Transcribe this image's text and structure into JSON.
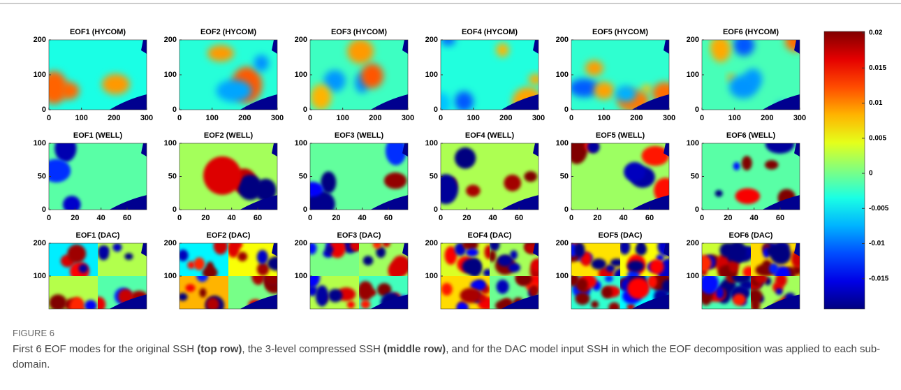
{
  "figure": {
    "rows": [
      {
        "titles": [
          "EOF1 (HYCOM)",
          "EOF2 (HYCOM)",
          "EOF3 (HYCOM)",
          "EOF4 (HYCOM)",
          "EOF5 (HYCOM)",
          "EOF6 (HYCOM)"
        ],
        "xlim": [
          0,
          300
        ],
        "ylim": [
          0,
          200
        ],
        "xticks": [
          0,
          100,
          200,
          300
        ],
        "yticks": [
          0,
          100,
          200
        ]
      },
      {
        "titles": [
          "EOF1 (WELL)",
          "EOF2 (WELL)",
          "EOF3 (WELL)",
          "EOF4 (WELL)",
          "EOF5 (WELL)",
          "EOF6 (WELL)"
        ],
        "xlim": [
          0,
          75
        ],
        "ylim": [
          0,
          100
        ],
        "xticks": [
          0,
          20,
          40,
          60
        ],
        "yticks": [
          0,
          50,
          100
        ]
      },
      {
        "titles": [
          "EOF1 (DAC)",
          "EOF2 (DAC)",
          "EOF3 (DAC)",
          "EOF4 (DAC)",
          "EOF5 (DAC)",
          "EOF6 (DAC)"
        ],
        "ylim": [
          0,
          200
        ],
        "yticks": [
          100,
          200
        ]
      }
    ],
    "colorbar": {
      "clim": [
        -0.0193,
        0.0202
      ],
      "ticks": [
        -0.015,
        -0.01,
        -0.005,
        0,
        0.005,
        0.01,
        0.015,
        0.02
      ]
    },
    "caption": {
      "label": "FIGURE 6",
      "parts": [
        "First 6 EOF modes for the original SSH ",
        "(top row)",
        ", the 3-level compressed SSH ",
        "(middle row)",
        ", and for the DAC model input SSH in which the EOF decomposition was applied to each sub-domain."
      ]
    }
  }
}
